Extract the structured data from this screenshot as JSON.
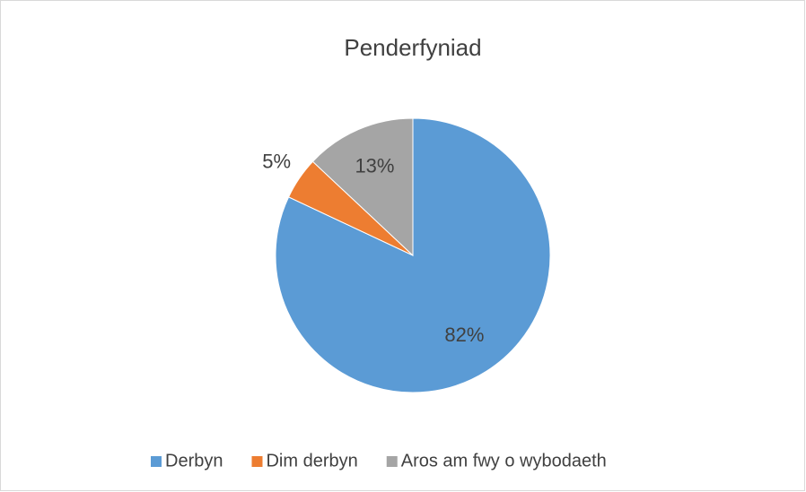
{
  "chart_data": {
    "type": "pie",
    "title": "Penderfyniad",
    "categories": [
      "Derbyn",
      "Dim derbyn",
      "Aros am fwy o wybodaeth"
    ],
    "values": [
      82,
      5,
      13
    ],
    "value_labels": [
      "82%",
      "5%",
      "13%"
    ],
    "colors": [
      "#5b9bd5",
      "#ed7d31",
      "#a5a5a5"
    ],
    "legend": "bottom"
  }
}
